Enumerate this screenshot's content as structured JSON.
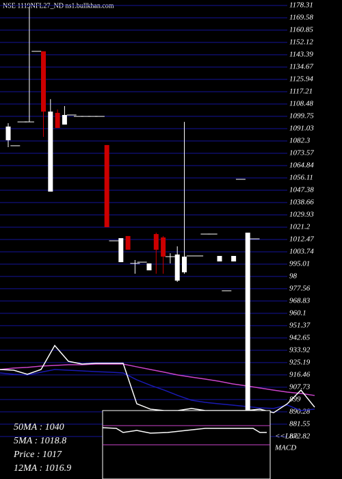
{
  "chart_data": {
    "type": "candlestick",
    "title": "NSE 1119NFL27_ND ns1.bullkhan.com",
    "ylim": [
      842.7,
      1182.19
    ],
    "yticks": [
      1178.31,
      1169.58,
      1160.85,
      1152.12,
      1143.39,
      1134.67,
      1125.94,
      1117.21,
      1108.48,
      1099.75,
      1091.03,
      1082.3,
      1073.57,
      1064.84,
      1056.11,
      1047.38,
      1038.66,
      1029.93,
      1021.2,
      1012.47,
      1003.74,
      995.01,
      {
        "value": 986.28,
        "label": "98"
      },
      977.56,
      968.83,
      960.1,
      951.37,
      942.65,
      933.92,
      925.19,
      916.46,
      907.73,
      899,
      890.28,
      881.55,
      872.82
    ],
    "grid": true,
    "up_color": "#ffffff",
    "down_color": "#cc0000",
    "grid_color": "#14149a",
    "candles": [
      {
        "open": 1082.8,
        "high": 1094.9,
        "low": 1077.9,
        "close": 1092.5
      },
      {
        "open": 1078.9,
        "high": 1078.9,
        "low": 1078.9,
        "close": 1078.9
      },
      {
        "open": 1095.8,
        "high": 1095.8,
        "low": 1095.8,
        "close": 1095.8
      },
      {
        "open": 1095.8,
        "high": 1177.3,
        "low": 1095.8,
        "close": 1095.8
      },
      {
        "open": 1145.8,
        "high": 1145.8,
        "low": 1145.8,
        "close": 1145.8
      },
      {
        "open": 1145.8,
        "high": 1145.8,
        "low": 1085.2,
        "close": 1103.1
      },
      {
        "open": 1046.4,
        "high": 1111.9,
        "low": 1046.4,
        "close": 1103.1
      },
      {
        "open": 1102.2,
        "high": 1104.6,
        "low": 1091.5,
        "close": 1091.5
      },
      {
        "open": 1093.9,
        "high": 1107.0,
        "low": 1093.9,
        "close": 1100.7
      },
      {
        "open": 1100.7,
        "high": 1100.7,
        "low": 1100.7,
        "close": 1100.7
      },
      {
        "open": 1099.7,
        "high": 1099.7,
        "low": 1099.7,
        "close": 1099.7
      },
      {
        "open": 1099.7,
        "high": 1099.7,
        "low": 1099.7,
        "close": 1099.7
      },
      {
        "open": 1099.7,
        "high": 1099.7,
        "low": 1099.7,
        "close": 1099.7
      },
      {
        "open": 1099.7,
        "high": 1099.7,
        "low": 1099.7,
        "close": 1099.7
      },
      {
        "open": 1079.4,
        "high": 1079.4,
        "low": 1021.2,
        "close": 1021.2
      },
      {
        "open": 1011.5,
        "high": 1011.5,
        "low": 1011.5,
        "close": 1011.5
      },
      {
        "open": 996.4,
        "high": 1013.4,
        "low": 996.4,
        "close": 1013.4
      },
      {
        "open": 1014.9,
        "high": 1014.9,
        "low": 1005.2,
        "close": 1005.2
      },
      {
        "open": 995.5,
        "high": 997.9,
        "low": 988.2,
        "close": 995.5
      },
      {
        "open": 996.4,
        "high": 996.4,
        "low": 996.4,
        "close": 996.4
      },
      {
        "open": 990.6,
        "high": 995.5,
        "low": 990.6,
        "close": 995.5
      },
      {
        "open": 1016.3,
        "high": 1017.3,
        "low": 988.2,
        "close": 1005.2
      },
      {
        "open": 1013.9,
        "high": 1014.9,
        "low": 988.2,
        "close": 1000.3
      },
      {
        "open": 1000.3,
        "high": 1002.7,
        "low": 995.5,
        "close": 1000.3
      },
      {
        "open": 983.3,
        "high": 1007.6,
        "low": 982.4,
        "close": 1001.8
      },
      {
        "open": 989.2,
        "high": 1095.8,
        "low": 988.2,
        "close": 1000.3
      },
      {
        "open": 1000.8,
        "high": 1000.8,
        "low": 1000.8,
        "close": 1000.8
      },
      {
        "open": 1000.8,
        "high": 1000.8,
        "low": 1000.8,
        "close": 1000.8
      },
      {
        "open": 1016.3,
        "high": 1016.3,
        "low": 1016.3,
        "close": 1016.3
      },
      {
        "open": 1016.3,
        "high": 1016.3,
        "low": 1016.3,
        "close": 1016.3
      },
      {
        "open": 996.9,
        "high": 1000.8,
        "low": 996.9,
        "close": 1000.8
      },
      {
        "open": 976.1,
        "high": 976.1,
        "low": 976.1,
        "close": 976.1
      },
      {
        "open": 996.9,
        "high": 1000.8,
        "low": 996.9,
        "close": 1000.8
      },
      {
        "open": 1055.1,
        "high": 1055.1,
        "low": 1055.1,
        "close": 1055.1
      },
      {
        "open": 842.7,
        "high": 1017.3,
        "low": 842.7,
        "close": 1017.3
      },
      {
        "open": 1012.9,
        "high": 1012.9,
        "low": 1012.9,
        "close": 1012.9
      }
    ],
    "lines": [
      {
        "color": "#cc44cc",
        "values": [
          920.3,
          921.3,
          921.8,
          922.7,
          923.2,
          923.7,
          923.7,
          924.2,
          924.2,
          924.2,
          922.2,
          920.3,
          918.4,
          916.4,
          914.9,
          913.5,
          912.0,
          910.1,
          908.7,
          907.2,
          905.7,
          904.3,
          903.3,
          901.9
        ]
      },
      {
        "color": "#1a1ab4",
        "values": [
          917.9,
          916.9,
          916.4,
          918.4,
          920.3,
          919.8,
          919.3,
          918.8,
          918.4,
          917.9,
          913.0,
          909.1,
          905.7,
          901.9,
          898.5,
          897.0,
          896.0,
          895.1,
          894.1,
          893.1,
          892.7,
          895.1,
          891.2,
          892.2
        ]
      },
      {
        "color": "#ffffff",
        "values": [
          920.3,
          919.8,
          916.9,
          920.3,
          937.3,
          926.1,
          924.2,
          924.7,
          924.7,
          924.7,
          896.0,
          892.2,
          891.2,
          891.2,
          892.7,
          891.2,
          891.2,
          891.2,
          891.2,
          892.2,
          889.7,
          896.0,
          905.7,
          893.6
        ]
      }
    ],
    "info": [
      "50MA : 1040",
      "5MA : 1018.8",
      "Price : 1017",
      "12MA : 1016.9"
    ],
    "macd_label": [
      "<<Live",
      "MACD"
    ]
  }
}
